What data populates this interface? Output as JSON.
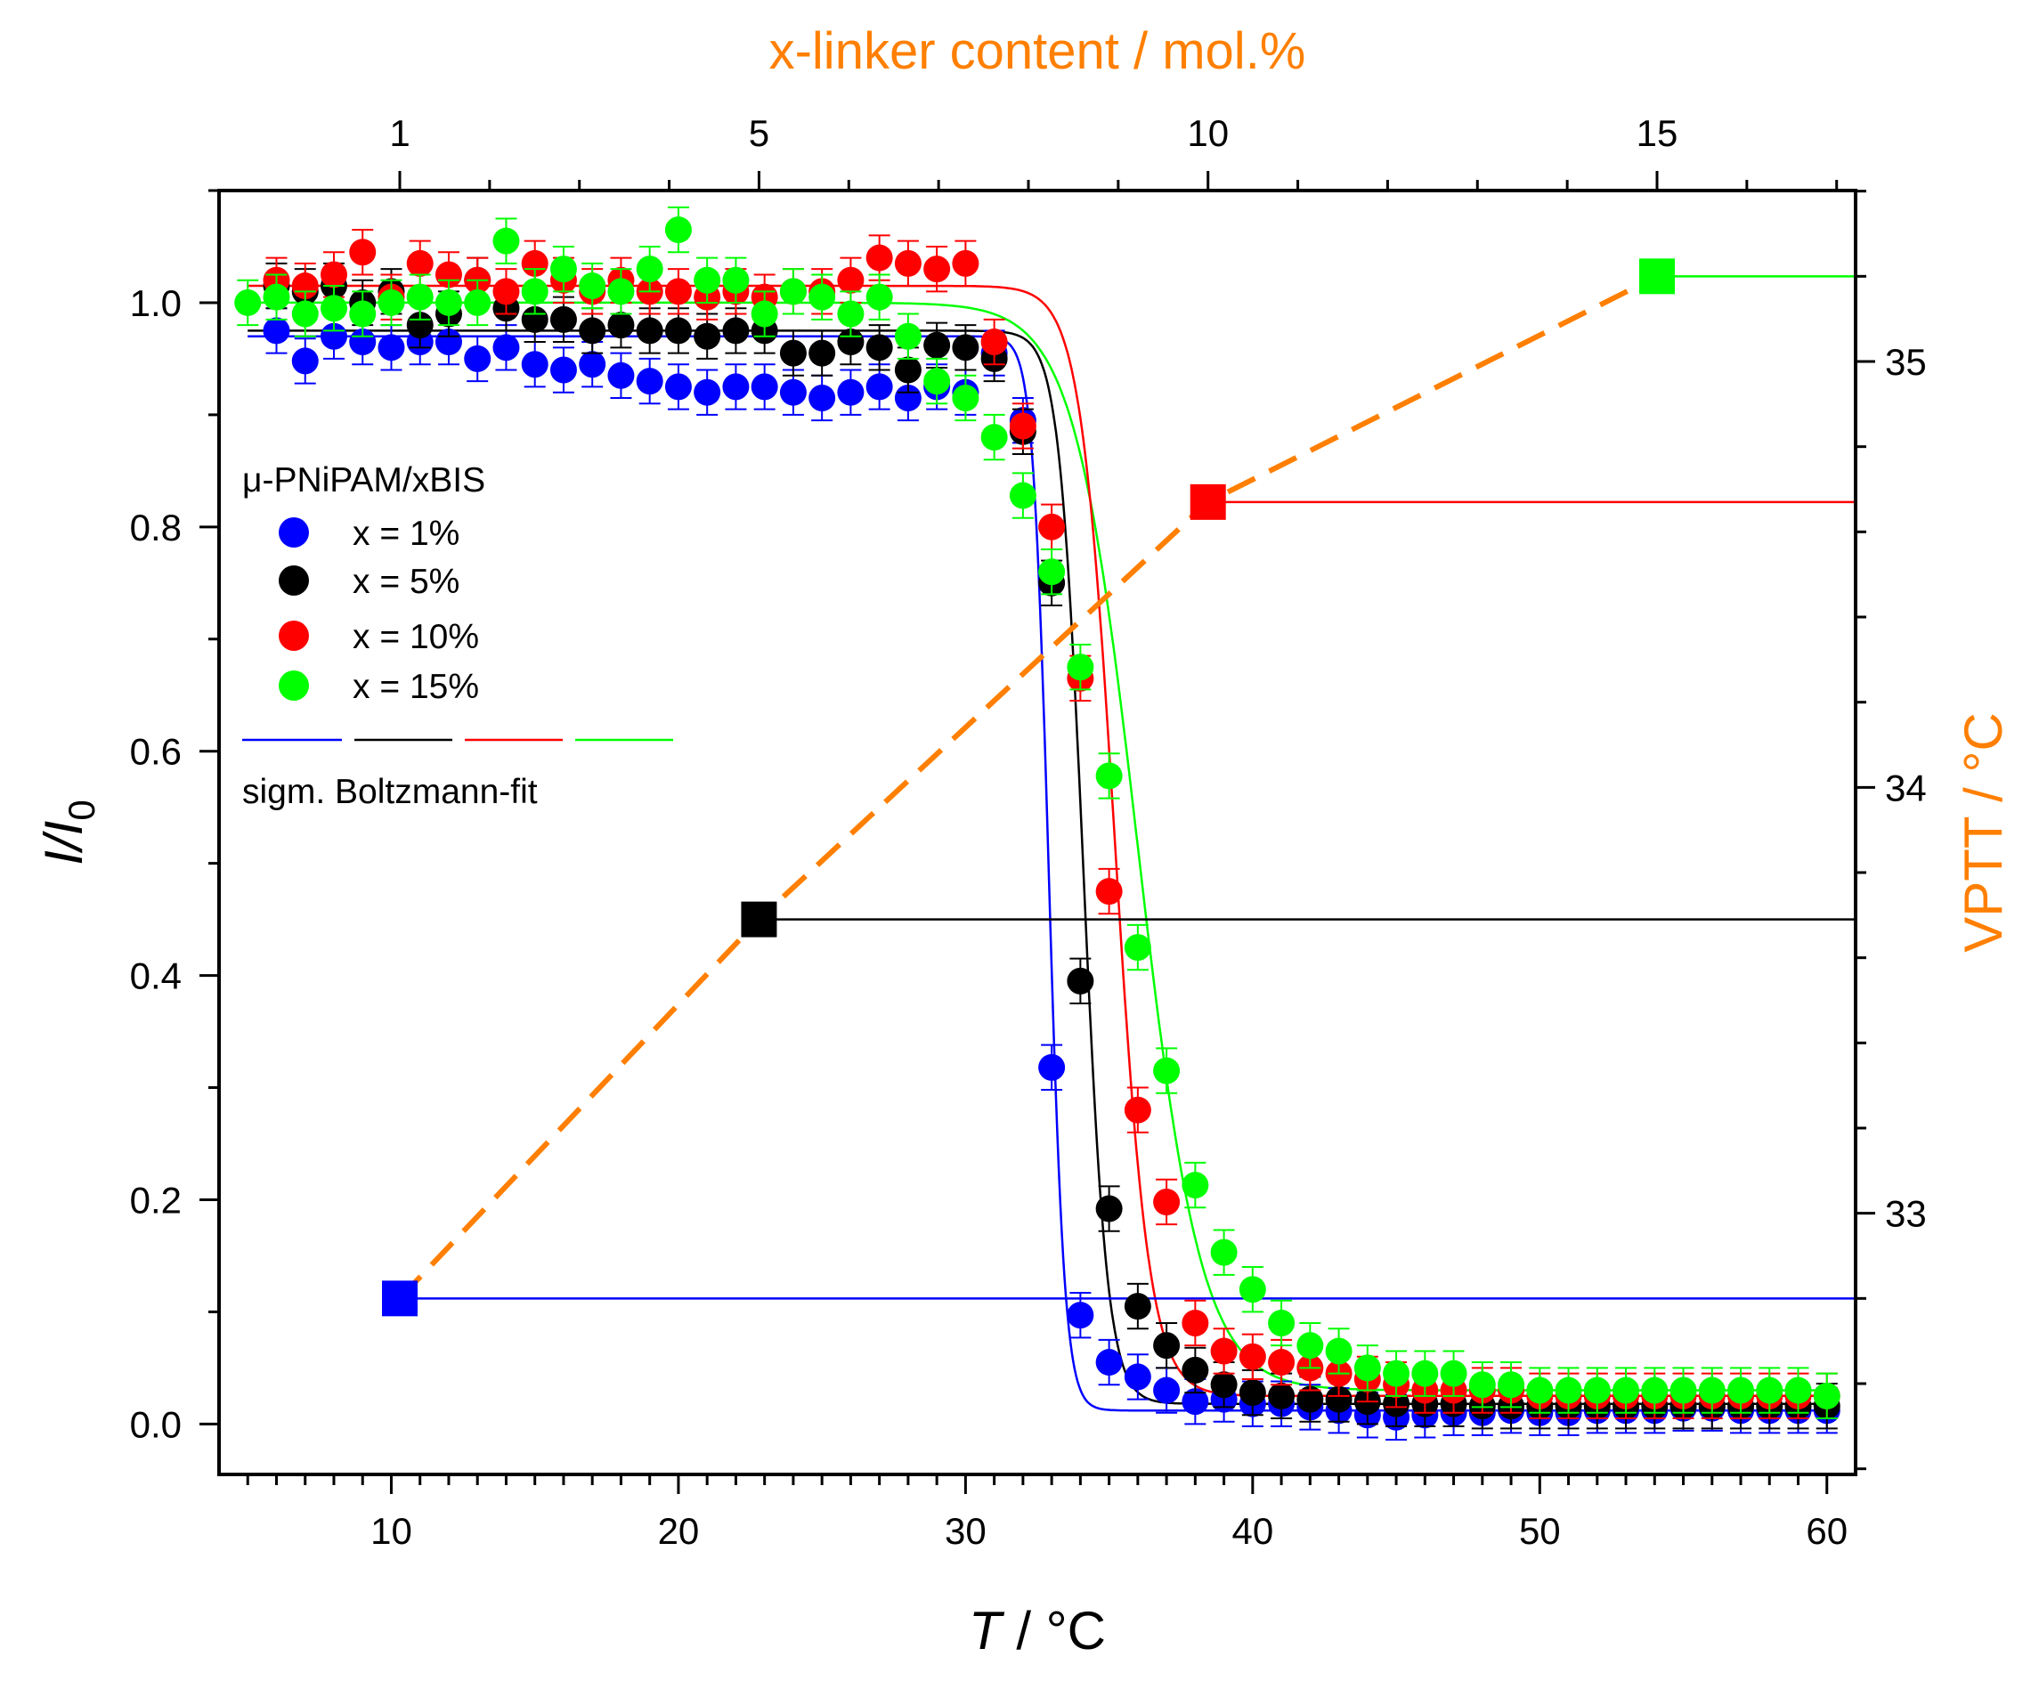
{
  "chart_data": {
    "type": "scatter",
    "title": "",
    "xlabel": "T / °C",
    "ylabel": "I/I0",
    "ylabel_main": "I/I",
    "ylabel_sub": "0",
    "xlabel_var": "T",
    "xlabel_unit": " / °C",
    "top_xlabel": "x-linker content / mol.%",
    "right_ylabel": "VPTT / °C",
    "xlim": [
      4,
      61
    ],
    "ylim": [
      -0.045,
      1.1
    ],
    "x_ticks": [
      "10",
      "20",
      "30",
      "40",
      "50",
      "60"
    ],
    "y_ticks": [
      "0.0",
      "0.2",
      "0.4",
      "0.6",
      "0.8",
      "1.0"
    ],
    "top_ticks": [
      "1",
      "5",
      "10",
      "15"
    ],
    "right_ticks": [
      "33",
      "34",
      "35"
    ],
    "legend": {
      "title": "μ-PNiPAM/xBIS",
      "entries": [
        "x = 1%",
        "x = 5%",
        "x = 10%",
        "x = 15%"
      ],
      "fit_label": "sigm. Boltzmann-fit",
      "position": "left"
    },
    "series": [
      {
        "name": "x = 1%",
        "color": "#0000ff",
        "fit": {
          "A1": 0.97,
          "A2": 0.012,
          "x0": 32.9,
          "dx": 0.28
        },
        "x": [
          6,
          7,
          8,
          9,
          10,
          11,
          12,
          13,
          14,
          15,
          16,
          17,
          18,
          19,
          20,
          21,
          22,
          23,
          24,
          25,
          26,
          27,
          28,
          29,
          30,
          31,
          32,
          33,
          34,
          35,
          36,
          37,
          38,
          39,
          40,
          41,
          42,
          43,
          44,
          45,
          46,
          47,
          48,
          49,
          50,
          51,
          52,
          53,
          54,
          55,
          56,
          57,
          58,
          59,
          60
        ],
        "y": [
          0.975,
          0.948,
          0.97,
          0.965,
          0.96,
          0.965,
          0.965,
          0.95,
          0.96,
          0.945,
          0.94,
          0.945,
          0.935,
          0.93,
          0.925,
          0.92,
          0.925,
          0.925,
          0.92,
          0.915,
          0.92,
          0.925,
          0.915,
          0.925,
          0.92,
          0.955,
          0.895,
          0.318,
          0.097,
          0.055,
          0.042,
          0.03,
          0.02,
          0.022,
          0.018,
          0.018,
          0.015,
          0.012,
          0.008,
          0.006,
          0.008,
          0.01,
          0.01,
          0.012,
          0.01,
          0.01,
          0.012,
          0.012,
          0.012,
          0.014,
          0.014,
          0.012,
          0.012,
          0.012,
          0.012
        ]
      },
      {
        "name": "x = 5%",
        "color": "#000000",
        "fit": {
          "A1": 0.975,
          "A2": 0.018,
          "x0": 34.1,
          "dx": 0.42
        },
        "x": [
          6,
          7,
          8,
          9,
          10,
          11,
          12,
          13,
          14,
          15,
          16,
          17,
          18,
          19,
          20,
          21,
          22,
          23,
          24,
          25,
          26,
          27,
          28,
          29,
          30,
          31,
          32,
          33,
          34,
          35,
          36,
          37,
          38,
          39,
          40,
          41,
          42,
          43,
          44,
          45,
          46,
          47,
          48,
          49,
          50,
          51,
          52,
          53,
          54,
          55,
          56,
          57,
          58,
          59,
          60
        ],
        "y": [
          1.015,
          1.01,
          1.015,
          1.0,
          1.01,
          0.98,
          0.99,
          1.02,
          0.995,
          0.985,
          0.985,
          0.975,
          0.98,
          0.975,
          0.975,
          0.97,
          0.975,
          0.975,
          0.955,
          0.955,
          0.965,
          0.96,
          0.94,
          0.962,
          0.96,
          0.95,
          0.885,
          0.75,
          0.395,
          0.192,
          0.105,
          0.07,
          0.048,
          0.035,
          0.028,
          0.025,
          0.022,
          0.022,
          0.02,
          0.018,
          0.018,
          0.018,
          0.016,
          0.016,
          0.016,
          0.016,
          0.016,
          0.016,
          0.016,
          0.016,
          0.016,
          0.016,
          0.016,
          0.016,
          0.016
        ]
      },
      {
        "name": "x = 10%",
        "color": "#ff0000",
        "fit": {
          "A1": 1.015,
          "A2": 0.025,
          "x0": 35.2,
          "dx": 0.6
        },
        "x": [
          6,
          7,
          8,
          9,
          10,
          11,
          12,
          13,
          14,
          15,
          16,
          17,
          18,
          19,
          20,
          21,
          22,
          23,
          24,
          25,
          26,
          27,
          28,
          29,
          30,
          31,
          32,
          33,
          34,
          35,
          36,
          37,
          38,
          39,
          40,
          41,
          42,
          43,
          44,
          45,
          46,
          47,
          48,
          49,
          50,
          51,
          52,
          53,
          54,
          55,
          56,
          57,
          58,
          59,
          60
        ],
        "y": [
          1.02,
          1.015,
          1.025,
          1.045,
          1.005,
          1.035,
          1.025,
          1.02,
          1.01,
          1.035,
          1.02,
          1.01,
          1.02,
          1.01,
          1.01,
          1.005,
          1.01,
          1.005,
          1.01,
          1.01,
          1.02,
          1.04,
          1.035,
          1.03,
          1.035,
          0.965,
          0.89,
          0.8,
          0.665,
          0.475,
          0.28,
          0.198,
          0.09,
          0.065,
          0.06,
          0.055,
          0.05,
          0.045,
          0.04,
          0.035,
          0.03,
          0.03,
          0.03,
          0.03,
          0.025,
          0.025,
          0.025,
          0.025,
          0.025,
          0.025,
          0.025,
          0.025,
          0.025,
          0.025,
          0.025
        ]
      },
      {
        "name": "x = 15%",
        "color": "#00ff00",
        "fit": {
          "A1": 1.0,
          "A2": 0.03,
          "x0": 36.0,
          "dx": 1.1
        },
        "x": [
          5,
          6,
          7,
          8,
          9,
          10,
          11,
          12,
          13,
          14,
          15,
          16,
          17,
          18,
          19,
          20,
          21,
          22,
          23,
          24,
          25,
          26,
          27,
          28,
          29,
          30,
          31,
          32,
          33,
          34,
          35,
          36,
          37,
          38,
          39,
          40,
          41,
          42,
          43,
          44,
          45,
          46,
          47,
          48,
          49,
          50,
          51,
          52,
          53,
          54,
          55,
          56,
          57,
          58,
          59,
          60
        ],
        "y": [
          1.0,
          1.005,
          0.99,
          0.995,
          0.99,
          1.0,
          1.005,
          1.0,
          1.0,
          1.055,
          1.01,
          1.03,
          1.015,
          1.01,
          1.03,
          1.065,
          1.02,
          1.02,
          0.99,
          1.01,
          1.005,
          0.99,
          1.005,
          0.97,
          0.93,
          0.915,
          0.88,
          0.828,
          0.76,
          0.675,
          0.578,
          0.425,
          0.315,
          0.213,
          0.153,
          0.12,
          0.09,
          0.07,
          0.065,
          0.05,
          0.045,
          0.045,
          0.045,
          0.035,
          0.035,
          0.03,
          0.03,
          0.03,
          0.03,
          0.03,
          0.03,
          0.03,
          0.03,
          0.03,
          0.03,
          0.025
        ]
      }
    ],
    "vptt": {
      "color": "#ff7f00",
      "crosslinker": [
        1,
        5,
        10,
        15
      ],
      "vptt_celsius": [
        32.8,
        33.69,
        34.67,
        35.2
      ],
      "marker_colors": [
        "#0000ff",
        "#000000",
        "#ff0000",
        "#00ff00"
      ]
    }
  }
}
